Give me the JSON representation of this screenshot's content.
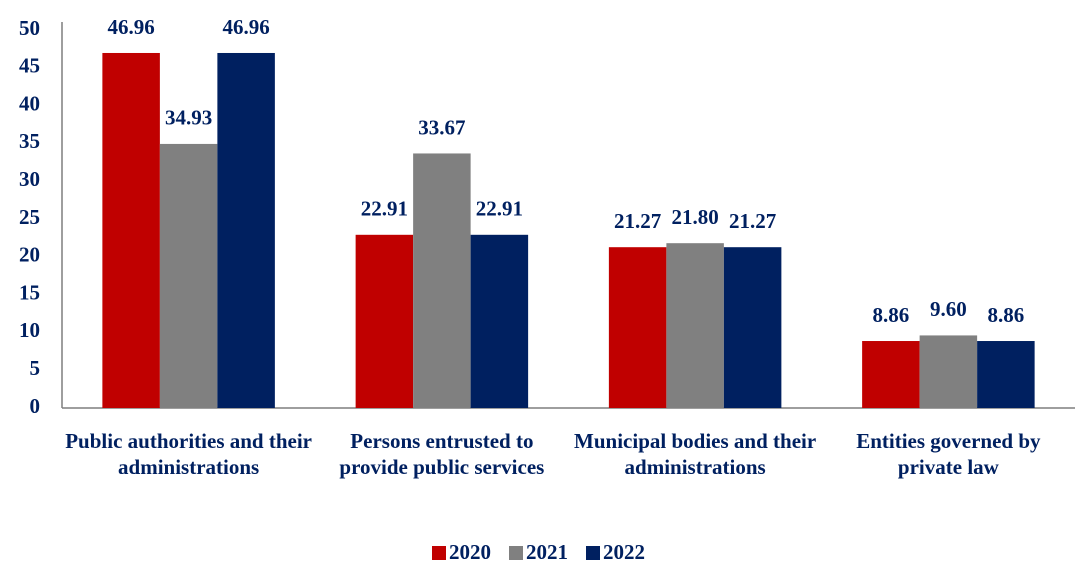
{
  "chart_data": {
    "type": "bar",
    "categories": [
      "Public authorities and their administrations",
      "Persons entrusted to provide public services",
      "Municipal bodies and their administrations",
      "Entities governed by private law"
    ],
    "series": [
      {
        "name": "2020",
        "color": "#c00000",
        "values": [
          46.96,
          22.91,
          21.27,
          8.86
        ],
        "value_labels": [
          "46.96",
          "22.91",
          "21.27",
          "8.86"
        ]
      },
      {
        "name": "2021",
        "color": "#808080",
        "values": [
          34.93,
          33.67,
          21.8,
          9.6
        ],
        "value_labels": [
          "34.93",
          "33.67",
          "21.80",
          "9.60"
        ]
      },
      {
        "name": "2022",
        "color": "#002060",
        "values": [
          46.96,
          22.91,
          21.27,
          8.86
        ],
        "value_labels": [
          "46.96",
          "22.91",
          "21.27",
          "8.86"
        ]
      }
    ],
    "ylim": [
      0,
      50
    ],
    "yticks": [
      0,
      5,
      10,
      15,
      20,
      25,
      30,
      35,
      40,
      45,
      50
    ],
    "grid": false,
    "legend": "bottom"
  }
}
